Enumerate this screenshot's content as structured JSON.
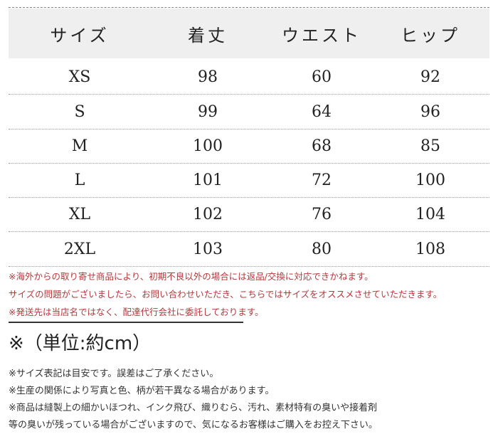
{
  "table": {
    "headers": [
      "サイズ",
      "着丈",
      "ウエスト",
      "ヒップ"
    ],
    "rows": [
      [
        "XS",
        "98",
        "60",
        "92"
      ],
      [
        "S",
        "99",
        "64",
        "96"
      ],
      [
        "M",
        "100",
        "68",
        "85"
      ],
      [
        "L",
        "101",
        "72",
        "100"
      ],
      [
        "XL",
        "102",
        "76",
        "104"
      ],
      [
        "2XL",
        "103",
        "80",
        "108"
      ]
    ]
  },
  "red_notes": [
    "※海外からの取り寄せ商品により、初期不良以外の場合には返品/交換に対応できかねます。",
    "サイズの問題がございましたら、お問い合わせいただき、こちらではサイズをオススメさせていただきます。",
    "※発送先は当店名ではなく、配達代行会社に委託しております。"
  ],
  "unit_label": "※（単位:約cm）",
  "notes": [
    "※サイズ表記は目安です。誤差はご了承ください。",
    "※生産の関係により写真と色、柄が若干異なる場合があります。",
    "※商品は縫製上の細かいほつれ、インク飛び、織りむら、汚れ、素材特有の臭いや接着剤",
    "等の臭いが残っている場合がございますので、気になるお客様はご購入をお控え下さい。"
  ],
  "colors": {
    "red_text": "#b5383b",
    "header_bg": "#efefef"
  }
}
